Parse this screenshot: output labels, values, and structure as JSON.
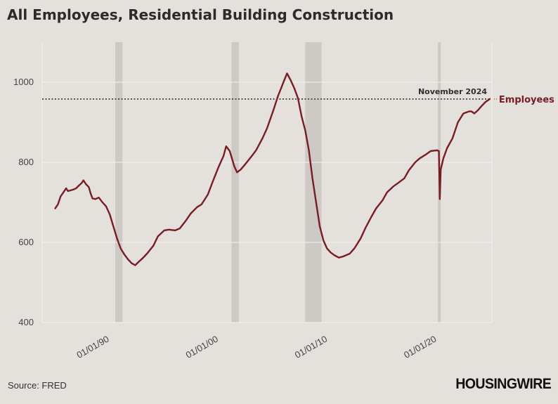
{
  "title": "All Employees, Residential Building Construction",
  "source": "Source: FRED",
  "brand": "HOUSINGWIRE",
  "colors": {
    "background": "#e4e0dc",
    "line": "#7a1c24",
    "recession": "#cdc9c5",
    "grid": "#f3f1ee",
    "reference": "#333333"
  },
  "chart_data": {
    "type": "line",
    "title": "All Employees, Residential Building Construction",
    "xlabel": "",
    "ylabel": "",
    "x_start": "1985-01",
    "x_end": "2024-11",
    "ylim": [
      400,
      1100
    ],
    "y_ticks": [
      400,
      600,
      800,
      1000
    ],
    "x_ticks": [
      {
        "date": "1990-01-01",
        "label": "01/01/90"
      },
      {
        "date": "2000-01-01",
        "label": "01/01/00"
      },
      {
        "date": "2010-01-01",
        "label": "01/01/10"
      },
      {
        "date": "2020-01-01",
        "label": "01/01/20"
      }
    ],
    "grid": true,
    "recessions": [
      {
        "start": "1990-07",
        "end": "1991-03"
      },
      {
        "start": "2001-03",
        "end": "2001-11"
      },
      {
        "start": "2007-12",
        "end": "2009-06"
      },
      {
        "start": "2020-02",
        "end": "2020-04"
      }
    ],
    "reference_line": {
      "value": 958,
      "label": "November 2024"
    },
    "series": [
      {
        "name": "Employees",
        "points": [
          [
            "1985-01",
            685
          ],
          [
            "1985-04",
            695
          ],
          [
            "1985-07",
            715
          ],
          [
            "1985-10",
            725
          ],
          [
            "1986-01",
            735
          ],
          [
            "1986-03",
            728
          ],
          [
            "1986-06",
            730
          ],
          [
            "1986-09",
            732
          ],
          [
            "1986-12",
            735
          ],
          [
            "1987-03",
            742
          ],
          [
            "1987-06",
            748
          ],
          [
            "1987-08",
            755
          ],
          [
            "1987-11",
            745
          ],
          [
            "1988-02",
            738
          ],
          [
            "1988-04",
            722
          ],
          [
            "1988-06",
            710
          ],
          [
            "1988-09",
            708
          ],
          [
            "1989-01",
            712
          ],
          [
            "1989-05",
            700
          ],
          [
            "1989-09",
            690
          ],
          [
            "1990-01",
            670
          ],
          [
            "1990-05",
            640
          ],
          [
            "1990-09",
            610
          ],
          [
            "1991-01",
            585
          ],
          [
            "1991-05",
            570
          ],
          [
            "1991-09",
            558
          ],
          [
            "1992-01",
            548
          ],
          [
            "1992-05",
            543
          ],
          [
            "1992-09",
            552
          ],
          [
            "1993-01",
            560
          ],
          [
            "1993-06",
            572
          ],
          [
            "1994-01",
            592
          ],
          [
            "1994-06",
            615
          ],
          [
            "1995-01",
            630
          ],
          [
            "1995-06",
            632
          ],
          [
            "1996-01",
            630
          ],
          [
            "1996-06",
            635
          ],
          [
            "1997-01",
            655
          ],
          [
            "1997-06",
            672
          ],
          [
            "1998-01",
            688
          ],
          [
            "1998-06",
            695
          ],
          [
            "1999-01",
            720
          ],
          [
            "1999-06",
            750
          ],
          [
            "2000-01",
            790
          ],
          [
            "2000-06",
            815
          ],
          [
            "2000-09",
            840
          ],
          [
            "2001-01",
            828
          ],
          [
            "2001-06",
            790
          ],
          [
            "2001-09",
            775
          ],
          [
            "2002-01",
            782
          ],
          [
            "2002-06",
            795
          ],
          [
            "2003-01",
            815
          ],
          [
            "2003-06",
            830
          ],
          [
            "2004-01",
            860
          ],
          [
            "2004-06",
            885
          ],
          [
            "2005-01",
            930
          ],
          [
            "2005-06",
            965
          ],
          [
            "2006-01",
            1005
          ],
          [
            "2006-04",
            1022
          ],
          [
            "2006-08",
            1005
          ],
          [
            "2006-12",
            985
          ],
          [
            "2007-04",
            960
          ],
          [
            "2007-08",
            915
          ],
          [
            "2007-12",
            880
          ],
          [
            "2008-04",
            830
          ],
          [
            "2008-08",
            760
          ],
          [
            "2008-12",
            700
          ],
          [
            "2009-04",
            640
          ],
          [
            "2009-08",
            605
          ],
          [
            "2009-12",
            585
          ],
          [
            "2010-04",
            575
          ],
          [
            "2010-08",
            568
          ],
          [
            "2011-01",
            562
          ],
          [
            "2011-06",
            565
          ],
          [
            "2012-01",
            572
          ],
          [
            "2012-06",
            585
          ],
          [
            "2013-01",
            610
          ],
          [
            "2013-06",
            635
          ],
          [
            "2014-01",
            665
          ],
          [
            "2014-06",
            685
          ],
          [
            "2015-01",
            705
          ],
          [
            "2015-06",
            725
          ],
          [
            "2016-01",
            740
          ],
          [
            "2016-06",
            748
          ],
          [
            "2017-01",
            760
          ],
          [
            "2017-06",
            780
          ],
          [
            "2018-01",
            800
          ],
          [
            "2018-06",
            810
          ],
          [
            "2019-01",
            820
          ],
          [
            "2019-06",
            828
          ],
          [
            "2020-01",
            830
          ],
          [
            "2020-03",
            828
          ],
          [
            "2020-04",
            708
          ],
          [
            "2020-05",
            782
          ],
          [
            "2020-08",
            810
          ],
          [
            "2020-12",
            835
          ],
          [
            "2021-06",
            860
          ],
          [
            "2021-12",
            900
          ],
          [
            "2022-06",
            922
          ],
          [
            "2022-12",
            927
          ],
          [
            "2023-03",
            927
          ],
          [
            "2023-06",
            922
          ],
          [
            "2023-10",
            930
          ],
          [
            "2024-01",
            938
          ],
          [
            "2024-06",
            950
          ],
          [
            "2024-11",
            958
          ]
        ]
      }
    ]
  }
}
